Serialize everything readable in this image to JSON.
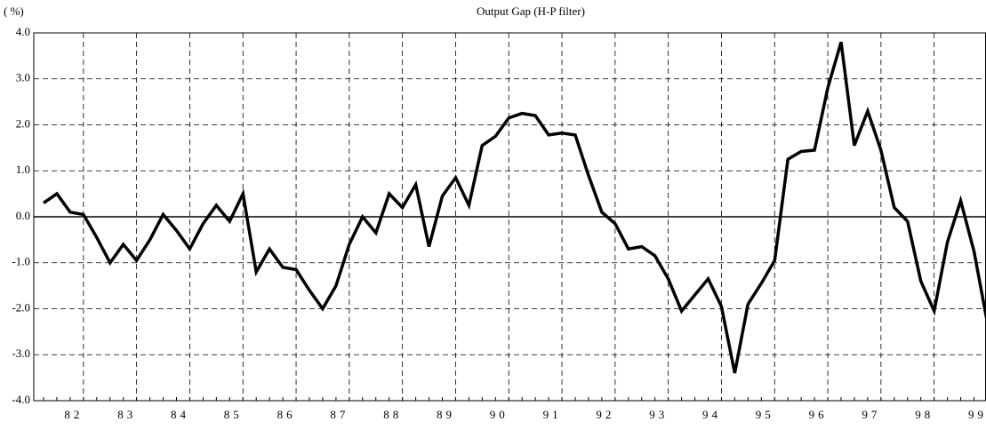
{
  "chart_data": {
    "type": "line",
    "title": "Output Gap (H-P filter)",
    "y_label": "( %)",
    "categories": [
      null,
      null,
      "82",
      null,
      null,
      null,
      "83",
      null,
      null,
      null,
      "84",
      null,
      null,
      null,
      "85",
      null,
      null,
      null,
      "86",
      null,
      null,
      null,
      "87",
      null,
      null,
      null,
      "88",
      null,
      null,
      null,
      "89",
      null,
      null,
      null,
      "90",
      null,
      null,
      null,
      "91",
      null,
      null,
      null,
      "92",
      null,
      null,
      null,
      "93",
      null,
      null,
      null,
      "94",
      null,
      null,
      null,
      "95",
      null,
      null,
      null,
      "96",
      null,
      null,
      null,
      "97",
      null,
      null,
      null,
      "98",
      null,
      null,
      null,
      "99",
      null
    ],
    "values": [
      0.3,
      0.5,
      0.1,
      0.05,
      -0.45,
      -1.0,
      -0.6,
      -0.95,
      -0.5,
      0.05,
      -0.3,
      -0.7,
      -0.15,
      0.25,
      -0.1,
      0.5,
      -1.2,
      -0.7,
      -1.1,
      -1.15,
      -1.6,
      -2.0,
      -1.5,
      -0.6,
      0.0,
      -0.35,
      0.5,
      0.2,
      0.7,
      -0.65,
      0.45,
      0.85,
      0.25,
      1.55,
      1.75,
      2.15,
      2.25,
      2.2,
      1.78,
      1.82,
      1.78,
      0.9,
      0.1,
      -0.15,
      -0.7,
      -0.65,
      -0.85,
      -1.35,
      -2.05,
      -1.7,
      -1.35,
      -1.95,
      -3.4,
      -1.9,
      -1.45,
      -0.95,
      1.25,
      1.42,
      1.45,
      2.8,
      3.8,
      1.55,
      2.3,
      1.45,
      0.2,
      -0.1,
      -1.4,
      -2.05,
      -0.55,
      0.35,
      -0.75,
      -2.3
    ],
    "color": "#000000",
    "ylim": [
      -4,
      4
    ],
    "yticks": [
      {
        "value": -4,
        "label": "-4.0"
      },
      {
        "value": -3,
        "label": "-3.0"
      },
      {
        "value": -2,
        "label": "-2.0"
      },
      {
        "value": -1,
        "label": "-1.0"
      },
      {
        "value": 0,
        "label": "0.0"
      },
      {
        "value": 1,
        "label": "1.0"
      },
      {
        "value": 2,
        "label": "2.0"
      },
      {
        "value": 3,
        "label": "3.0"
      },
      {
        "value": 4,
        "label": "4.0"
      }
    ],
    "grid": true
  }
}
